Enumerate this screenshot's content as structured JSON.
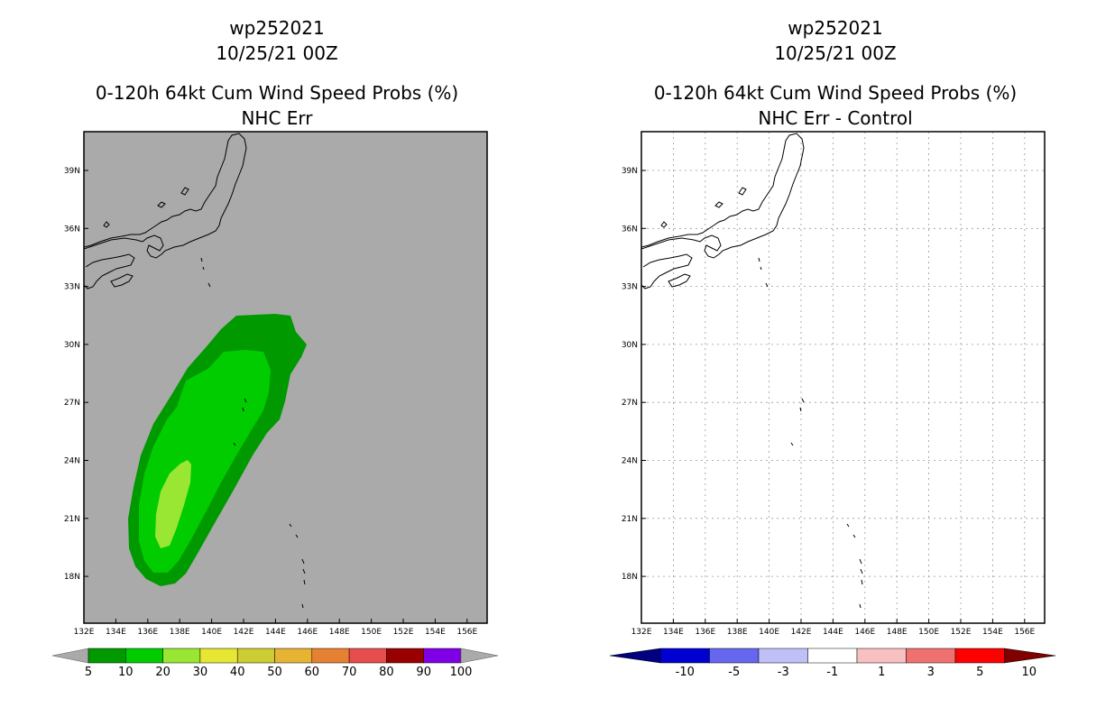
{
  "left_panel": {
    "title_line1": "wp252021",
    "title_line2": "10/25/21 00Z",
    "title_line3": "0-120h 64kt Cum Wind Speed Probs (%)",
    "title_line4": "NHC Err"
  },
  "right_panel": {
    "title_line1": "wp252021",
    "title_line2": "10/25/21 00Z",
    "title_line3": "0-120h 64kt Cum Wind Speed Probs (%)",
    "title_line4": "NHC Err - Control"
  },
  "axes": {
    "lon_labels": [
      "132E",
      "134E",
      "136E",
      "138E",
      "140E",
      "142E",
      "144E",
      "146E",
      "148E",
      "150E",
      "152E",
      "154E",
      "156E"
    ],
    "lat_labels": [
      "39N",
      "36N",
      "33N",
      "30N",
      "27N",
      "24N",
      "21N",
      "18N"
    ]
  },
  "colors": {
    "map_bg": "#aaaaaa",
    "prob_5": "#009900",
    "prob_10": "#00cc00",
    "prob_20": "#99e633"
  },
  "left_colorbar": {
    "labels": [
      "5",
      "10",
      "20",
      "30",
      "40",
      "50",
      "60",
      "70",
      "80",
      "90",
      "100"
    ],
    "colors": [
      "#009900",
      "#00cc00",
      "#99e633",
      "#e6e633",
      "#cccc33",
      "#e6b333",
      "#e68033",
      "#e64d4d",
      "#990000",
      "#8000e6"
    ],
    "end_color": "#aaaaaa"
  },
  "right_colorbar": {
    "labels": [
      "-10",
      "-5",
      "-3",
      "-1",
      "1",
      "3",
      "5",
      "10"
    ],
    "colors": [
      "#0000d0",
      "#6666ee",
      "#c0c0f8",
      "#ffffff",
      "#f8c0c0",
      "#f07070",
      "#ff0000"
    ],
    "left_end": "#000080",
    "right_end": "#800000"
  }
}
